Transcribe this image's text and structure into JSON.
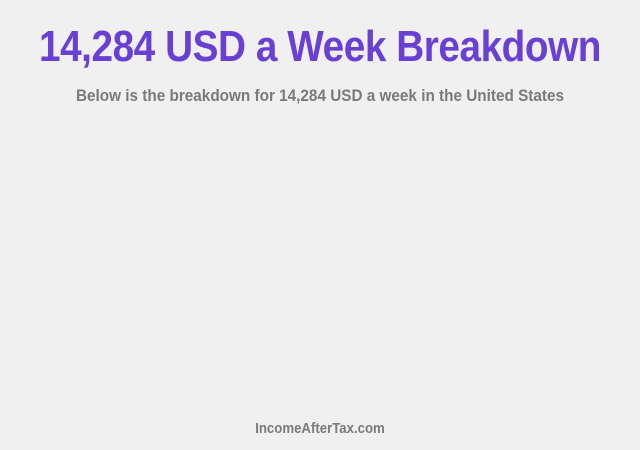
{
  "header": {
    "title": "14,284 USD a Week Breakdown",
    "subtitle": "Below is the breakdown for 14,284 USD a week in the United States"
  },
  "footer": {
    "site": "IncomeAfterTax.com"
  },
  "colors": {
    "title": "#6a3fd4",
    "text": "#7a7a7a",
    "background": "#f0f0f0"
  }
}
